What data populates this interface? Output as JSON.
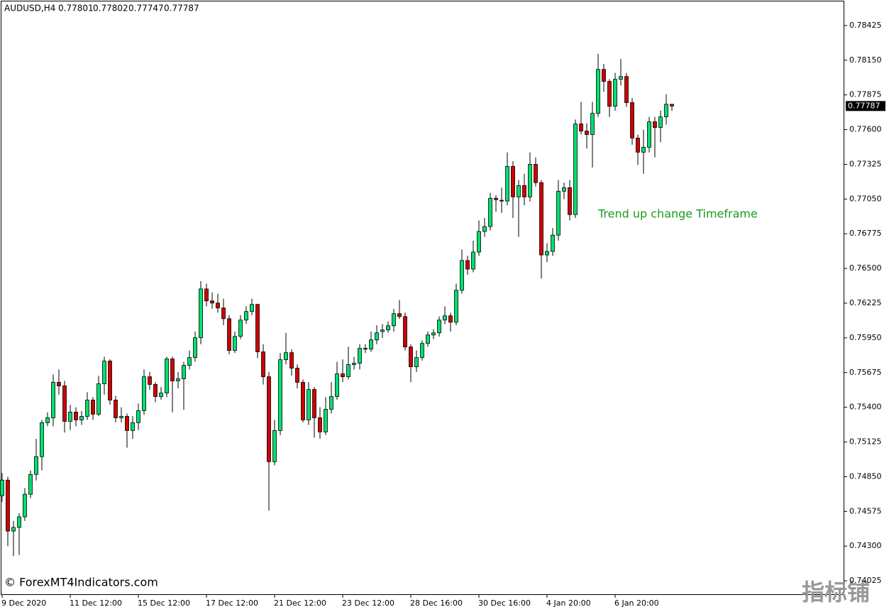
{
  "chart_data": {
    "type": "candlestick",
    "title": "AUDUSD,H4",
    "annotation": "Trend up change Timeframe",
    "watermark": "© ForexMT4Indicators.com",
    "watermark_cn": "指标铺",
    "up_color": "#00e070",
    "down_color": "#d00000",
    "ylim": [
      0.73913,
      0.78627
    ],
    "yticks": [
      0.78425,
      {
        "value": 0.7815,
        "label": "0.78150"
      },
      0.77875,
      {
        "value": 0.776,
        "label": "0.77600"
      },
      0.77325,
      {
        "value": 0.7705,
        "label": "0.77050"
      },
      0.76775,
      {
        "value": 0.765,
        "label": "0.76500"
      },
      0.76225,
      {
        "value": 0.7595,
        "label": "0.75950"
      },
      0.75675,
      {
        "value": 0.754,
        "label": "0.75400"
      },
      0.75125,
      {
        "value": 0.7485,
        "label": "0.74850"
      },
      0.74575,
      {
        "value": 0.743,
        "label": "0.74300"
      },
      0.74025
    ],
    "categories": [
      "9 Dec 2020",
      null,
      null,
      null,
      null,
      null,
      null,
      null,
      null,
      null,
      null,
      null,
      "11 Dec 12:00",
      null,
      null,
      null,
      null,
      null,
      null,
      null,
      null,
      null,
      null,
      null,
      "15 Dec 12:00",
      null,
      null,
      null,
      null,
      null,
      null,
      null,
      null,
      null,
      null,
      null,
      "17 Dec 12:00",
      null,
      null,
      null,
      null,
      null,
      null,
      null,
      null,
      null,
      null,
      null,
      "21 Dec 12:00",
      null,
      null,
      null,
      null,
      null,
      null,
      null,
      null,
      null,
      null,
      null,
      "23 Dec 12:00",
      null,
      null,
      null,
      null,
      null,
      null,
      null,
      null,
      null,
      null,
      null,
      "28 Dec 16:00",
      null,
      null,
      null,
      null,
      null,
      null,
      null,
      null,
      null,
      null,
      null,
      "30 Dec 16:00",
      null,
      null,
      null,
      null,
      null,
      null,
      null,
      null,
      null,
      null,
      null,
      "4 Jan 20:00",
      null,
      null,
      null,
      null,
      null,
      null,
      null,
      null,
      null,
      null,
      null,
      "6 Jan 20:00",
      null,
      null,
      null,
      null,
      null,
      null,
      null,
      null,
      null,
      null
    ],
    "ohlc": [
      [
        0.747,
        0.7488,
        0.7465,
        0.74823
      ],
      [
        0.74823,
        0.7485,
        0.743,
        0.74419
      ],
      [
        0.74419,
        0.745,
        0.7422,
        0.74448
      ],
      [
        0.74448,
        0.7456,
        0.7423,
        0.74532
      ],
      [
        0.74532,
        0.7476,
        0.745,
        0.74711
      ],
      [
        0.74711,
        0.749,
        0.7468,
        0.74868
      ],
      [
        0.74868,
        0.7515,
        0.7482,
        0.75009
      ],
      [
        0.75009,
        0.753,
        0.749,
        0.75278
      ],
      [
        0.75278,
        0.7536,
        0.7525,
        0.75317
      ],
      [
        0.75317,
        0.7566,
        0.7525,
        0.75598
      ],
      [
        0.75598,
        0.757,
        0.755,
        0.7557
      ],
      [
        0.7557,
        0.7561,
        0.752,
        0.75289
      ],
      [
        0.75289,
        0.7542,
        0.7522,
        0.75362
      ],
      [
        0.75362,
        0.754,
        0.7525,
        0.753
      ],
      [
        0.753,
        0.7537,
        0.7526,
        0.75328
      ],
      [
        0.75328,
        0.7552,
        0.753,
        0.75457
      ],
      [
        0.75457,
        0.7548,
        0.753,
        0.75345
      ],
      [
        0.75345,
        0.7565,
        0.7533,
        0.75586
      ],
      [
        0.75586,
        0.758,
        0.755,
        0.75766
      ],
      [
        0.75766,
        0.7578,
        0.7542,
        0.75457
      ],
      [
        0.75457,
        0.7549,
        0.7528,
        0.75317
      ],
      [
        0.75317,
        0.754,
        0.7528,
        0.75328
      ],
      [
        0.75328,
        0.7535,
        0.7508,
        0.75216
      ],
      [
        0.75216,
        0.7533,
        0.7515,
        0.75278
      ],
      [
        0.75278,
        0.7543,
        0.7522,
        0.75373
      ],
      [
        0.75373,
        0.757,
        0.7534,
        0.75642
      ],
      [
        0.75642,
        0.7568,
        0.7554,
        0.75581
      ],
      [
        0.75581,
        0.756,
        0.7544,
        0.75485
      ],
      [
        0.75485,
        0.7556,
        0.7546,
        0.75513
      ],
      [
        0.75513,
        0.758,
        0.7548,
        0.75783
      ],
      [
        0.75783,
        0.758,
        0.7536,
        0.75609
      ],
      [
        0.75609,
        0.7568,
        0.7555,
        0.75626
      ],
      [
        0.75626,
        0.7576,
        0.7538,
        0.75732
      ],
      [
        0.75732,
        0.7585,
        0.757,
        0.75794
      ],
      [
        0.75794,
        0.76,
        0.7576,
        0.75951
      ],
      [
        0.75951,
        0.764,
        0.759,
        0.76338
      ],
      [
        0.76338,
        0.7638,
        0.762,
        0.76243
      ],
      [
        0.76243,
        0.7631,
        0.7618,
        0.76226
      ],
      [
        0.76226,
        0.763,
        0.7615,
        0.76187
      ],
      [
        0.76187,
        0.7626,
        0.7605,
        0.76102
      ],
      [
        0.76102,
        0.7613,
        0.7582,
        0.7585
      ],
      [
        0.7585,
        0.76,
        0.7583,
        0.75962
      ],
      [
        0.75962,
        0.7613,
        0.7594,
        0.76091
      ],
      [
        0.76091,
        0.762,
        0.7606,
        0.76159
      ],
      [
        0.76159,
        0.7626,
        0.7613,
        0.76215
      ],
      [
        0.76215,
        0.7622,
        0.7579,
        0.75839
      ],
      [
        0.75839,
        0.759,
        0.7558,
        0.75642
      ],
      [
        0.75642,
        0.7568,
        0.7458,
        0.74969
      ],
      [
        0.74969,
        0.753,
        0.7494,
        0.75216
      ],
      [
        0.75216,
        0.7583,
        0.7518,
        0.75777
      ],
      [
        0.75777,
        0.7599,
        0.7574,
        0.75833
      ],
      [
        0.75833,
        0.7586,
        0.7565,
        0.7571
      ],
      [
        0.7571,
        0.7574,
        0.7555,
        0.75598
      ],
      [
        0.75598,
        0.7562,
        0.7528,
        0.753
      ],
      [
        0.753,
        0.756,
        0.7526,
        0.75541
      ],
      [
        0.75541,
        0.7556,
        0.7516,
        0.75317
      ],
      [
        0.75317,
        0.754,
        0.7515,
        0.75205
      ],
      [
        0.75205,
        0.7548,
        0.7518,
        0.75384
      ],
      [
        0.75384,
        0.756,
        0.7535,
        0.75485
      ],
      [
        0.75485,
        0.7576,
        0.7546,
        0.75665
      ],
      [
        0.75665,
        0.7578,
        0.756,
        0.75642
      ],
      [
        0.75642,
        0.7588,
        0.7562,
        0.75738
      ],
      [
        0.75738,
        0.758,
        0.757,
        0.75749
      ],
      [
        0.75749,
        0.759,
        0.757,
        0.75867
      ],
      [
        0.75867,
        0.759,
        0.7583,
        0.75861
      ],
      [
        0.75861,
        0.76,
        0.7584,
        0.75934
      ],
      [
        0.75934,
        0.7605,
        0.759,
        0.7599
      ],
      [
        0.76,
        0.7606,
        0.7595,
        0.76013
      ],
      [
        0.76013,
        0.7608,
        0.7599,
        0.76046
      ],
      [
        0.76046,
        0.7618,
        0.76,
        0.76142
      ],
      [
        0.76142,
        0.7625,
        0.761,
        0.76119
      ],
      [
        0.76119,
        0.7615,
        0.7585,
        0.75878
      ],
      [
        0.75878,
        0.759,
        0.756,
        0.75721
      ],
      [
        0.75721,
        0.7585,
        0.7568,
        0.75794
      ],
      [
        0.75794,
        0.7593,
        0.7577,
        0.75906
      ],
      [
        0.75906,
        0.76,
        0.7588,
        0.75973
      ],
      [
        0.75973,
        0.7602,
        0.7594,
        0.7599
      ],
      [
        0.7599,
        0.7612,
        0.7596,
        0.76091
      ],
      [
        0.76091,
        0.762,
        0.7606,
        0.76125
      ],
      [
        0.76125,
        0.7615,
        0.76,
        0.76074
      ],
      [
        0.76074,
        0.7638,
        0.7605,
        0.76327
      ],
      [
        0.76327,
        0.7665,
        0.763,
        0.76563
      ],
      [
        0.76563,
        0.766,
        0.7645,
        0.76495
      ],
      [
        0.76495,
        0.7672,
        0.7647,
        0.7663
      ],
      [
        0.7663,
        0.7688,
        0.766,
        0.76793
      ],
      [
        0.76793,
        0.769,
        0.7675,
        0.76832
      ],
      [
        0.76832,
        0.771,
        0.768,
        0.77056
      ],
      [
        0.77056,
        0.7708,
        0.7695,
        0.77045
      ],
      [
        0.7704,
        0.7714,
        0.7694,
        0.77034
      ],
      [
        0.77034,
        0.7742,
        0.77,
        0.77309
      ],
      [
        0.77309,
        0.7735,
        0.769,
        0.77067
      ],
      [
        0.77067,
        0.772,
        0.7675,
        0.77157
      ],
      [
        0.77157,
        0.7725,
        0.77,
        0.77067
      ],
      [
        0.77067,
        0.7742,
        0.7703,
        0.77325
      ],
      [
        0.77325,
        0.7738,
        0.7715,
        0.7718
      ],
      [
        0.7718,
        0.772,
        0.7642,
        0.76607
      ],
      [
        0.76607,
        0.767,
        0.7655,
        0.76635
      ],
      [
        0.76635,
        0.7682,
        0.766,
        0.76764
      ],
      [
        0.76764,
        0.772,
        0.7672,
        0.77112
      ],
      [
        0.77112,
        0.7718,
        0.7705,
        0.7714
      ],
      [
        0.7714,
        0.772,
        0.7688,
        0.76927
      ],
      [
        0.76927,
        0.7768,
        0.769,
        0.77645
      ],
      [
        0.77645,
        0.7782,
        0.7756,
        0.77589
      ],
      [
        0.77589,
        0.7765,
        0.7745,
        0.77561
      ],
      [
        0.77561,
        0.7782,
        0.773,
        0.77729
      ],
      [
        0.77729,
        0.782,
        0.777,
        0.78077
      ],
      [
        0.78077,
        0.7812,
        0.779,
        0.77982
      ],
      [
        0.77982,
        0.78,
        0.777,
        0.77785
      ],
      [
        0.77785,
        0.7805,
        0.7775,
        0.77999
      ],
      [
        0.77999,
        0.7816,
        0.7795,
        0.78021
      ],
      [
        0.78021,
        0.7805,
        0.7778,
        0.77814
      ],
      [
        0.77814,
        0.7785,
        0.7748,
        0.77533
      ],
      [
        0.77533,
        0.7756,
        0.7732,
        0.77421
      ],
      [
        0.77421,
        0.776,
        0.7725,
        0.7746
      ],
      [
        0.7746,
        0.777,
        0.7742,
        0.77662
      ],
      [
        0.77662,
        0.777,
        0.7738,
        0.77617
      ],
      [
        0.77617,
        0.7775,
        0.775,
        0.77701
      ],
      [
        0.77701,
        0.7788,
        0.7764,
        0.77801
      ],
      [
        0.77801,
        0.77802,
        0.77747,
        0.77787
      ]
    ]
  }
}
